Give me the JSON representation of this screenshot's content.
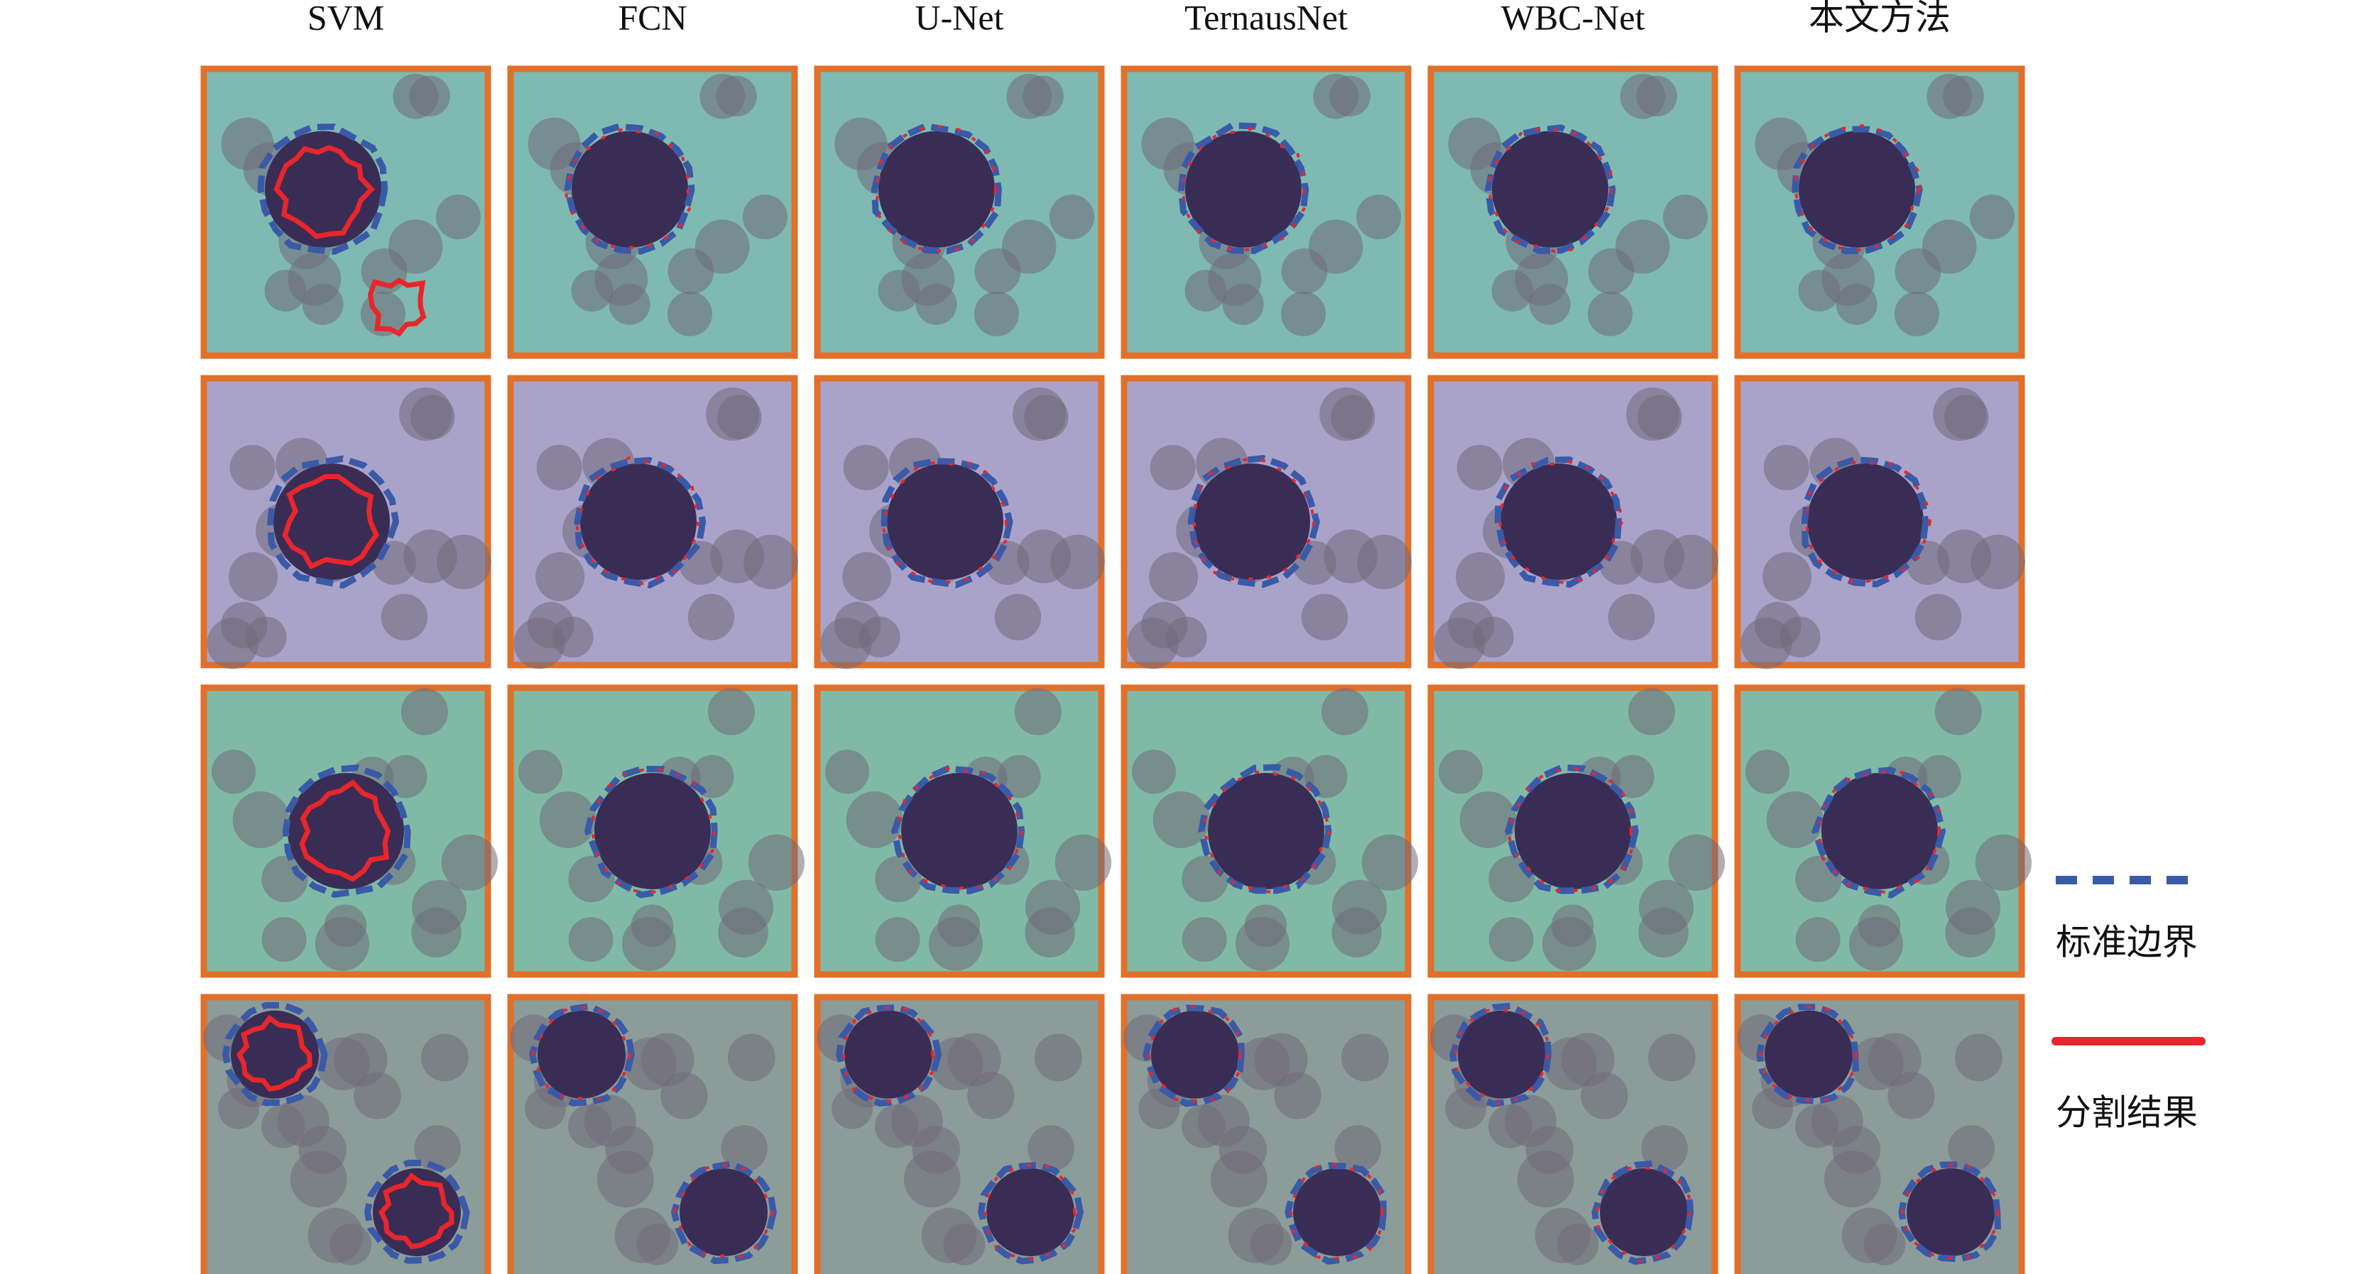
{
  "columns": [
    "SVM",
    "FCN",
    "U-Net",
    "TernausNet",
    "WBC-Net",
    "本文方法"
  ],
  "legend": [
    "标准边界",
    "分割结果"
  ]
}
